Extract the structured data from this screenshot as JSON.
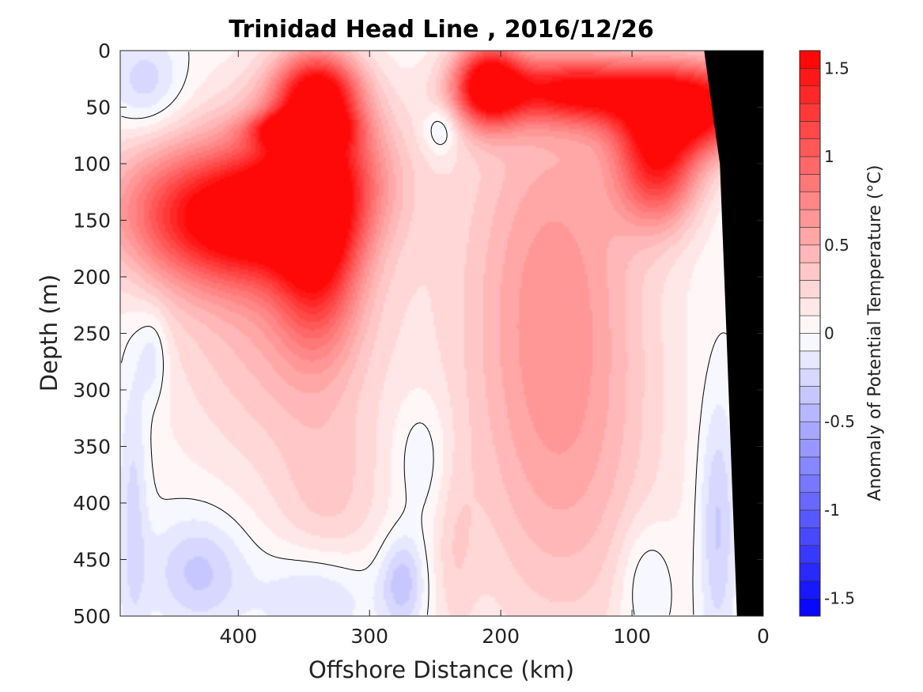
{
  "chart_data": {
    "type": "heatmap",
    "title": "Trinidad Head Line , 2016/12/26",
    "xlabel": "Offshore Distance (km)",
    "ylabel": "Depth (m)",
    "colorbar_label": "Anomaly of Potential Temperature (°C)",
    "xlim": [
      490,
      0
    ],
    "x_reversed": true,
    "ylim": [
      0,
      500
    ],
    "y_reversed": true,
    "x_ticks": [
      400,
      300,
      200,
      100,
      0
    ],
    "x_tick_labels": [
      "400",
      "300",
      "200",
      "100",
      "0"
    ],
    "y_ticks": [
      0,
      50,
      100,
      150,
      200,
      250,
      300,
      350,
      400,
      450,
      500
    ],
    "y_tick_labels": [
      "0",
      "50",
      "100",
      "150",
      "200",
      "250",
      "300",
      "350",
      "400",
      "450",
      "500"
    ],
    "color_range": [
      -1.6,
      1.6
    ],
    "colorbar_ticks": [
      1.5,
      1,
      0.5,
      0,
      -0.5,
      -1,
      -1.5
    ],
    "colorbar_tick_labels": [
      "1.5",
      "1",
      "0.5",
      "0",
      "-0.5",
      "-1",
      "-1.5"
    ],
    "colorbar_levels": 32,
    "colors": {
      "warm": "#ff0000",
      "zero": "#ffffff",
      "cold": "#0000ff",
      "land": "#000000",
      "contour": "#000000"
    },
    "zero_contour": true,
    "anomaly_features": [
      {
        "kind": "warm",
        "x": 340,
        "depth": 40,
        "value": 1.5,
        "sx": 22,
        "sy": 28
      },
      {
        "kind": "warm",
        "x": 355,
        "depth": 70,
        "value": 1.3,
        "sx": 22,
        "sy": 10
      },
      {
        "kind": "warm",
        "x": 340,
        "depth": 110,
        "value": 1.1,
        "sx": 38,
        "sy": 45
      },
      {
        "kind": "warm",
        "x": 395,
        "depth": 150,
        "value": 1.1,
        "sx": 42,
        "sy": 38
      },
      {
        "kind": "warm",
        "x": 340,
        "depth": 180,
        "value": 1.0,
        "sx": 22,
        "sy": 60
      },
      {
        "kind": "warm",
        "x": 450,
        "depth": 140,
        "value": 0.7,
        "sx": 45,
        "sy": 45
      },
      {
        "kind": "warm",
        "x": 370,
        "depth": 210,
        "value": 0.5,
        "sx": 60,
        "sy": 110
      },
      {
        "kind": "warm",
        "x": 330,
        "depth": 400,
        "value": 0.25,
        "sx": 30,
        "sy": 60
      },
      {
        "kind": "warm",
        "x": 210,
        "depth": 30,
        "value": 1.5,
        "sx": 18,
        "sy": 26
      },
      {
        "kind": "warm",
        "x": 145,
        "depth": 35,
        "value": 1.3,
        "sx": 45,
        "sy": 20
      },
      {
        "kind": "warm",
        "x": 50,
        "depth": 50,
        "value": 1.6,
        "sx": 42,
        "sy": 28
      },
      {
        "kind": "warm",
        "x": 80,
        "depth": 100,
        "value": 1.2,
        "sx": 22,
        "sy": 38
      },
      {
        "kind": "warm",
        "x": 160,
        "depth": 200,
        "value": 0.6,
        "sx": 50,
        "sy": 140
      },
      {
        "kind": "warm",
        "x": 150,
        "depth": 400,
        "value": 0.3,
        "sx": 55,
        "sy": 120
      },
      {
        "kind": "warm",
        "x": 235,
        "depth": 450,
        "value": 0.18,
        "sx": 12,
        "sy": 60
      },
      {
        "kind": "cold",
        "x": 470,
        "depth": 30,
        "value": -0.3,
        "sx": 20,
        "sy": 30
      },
      {
        "kind": "cold",
        "x": 245,
        "depth": 70,
        "value": -0.3,
        "sx": 9,
        "sy": 15
      },
      {
        "kind": "cold",
        "x": 430,
        "depth": 460,
        "value": -0.35,
        "sx": 25,
        "sy": 35
      },
      {
        "kind": "cold",
        "x": 340,
        "depth": 480,
        "value": -0.3,
        "sx": 30,
        "sy": 30
      },
      {
        "kind": "cold",
        "x": 275,
        "depth": 470,
        "value": -0.4,
        "sx": 12,
        "sy": 30
      },
      {
        "kind": "cold",
        "x": 480,
        "depth": 400,
        "value": -0.25,
        "sx": 8,
        "sy": 100
      },
      {
        "kind": "cold",
        "x": 90,
        "depth": 470,
        "value": -0.25,
        "sx": 15,
        "sy": 40
      },
      {
        "kind": "cold",
        "x": 35,
        "depth": 420,
        "value": -0.35,
        "sx": 10,
        "sy": 80
      },
      {
        "kind": "cold",
        "x": 260,
        "depth": 360,
        "value": -0.2,
        "sx": 15,
        "sy": 40
      },
      {
        "kind": "cold",
        "x": 465,
        "depth": 270,
        "value": -0.25,
        "sx": 8,
        "sy": 30
      }
    ],
    "bathymetry": [
      [
        20,
        500
      ],
      [
        28,
        250
      ],
      [
        33,
        100
      ],
      [
        38,
        60
      ],
      [
        45,
        0
      ]
    ]
  }
}
